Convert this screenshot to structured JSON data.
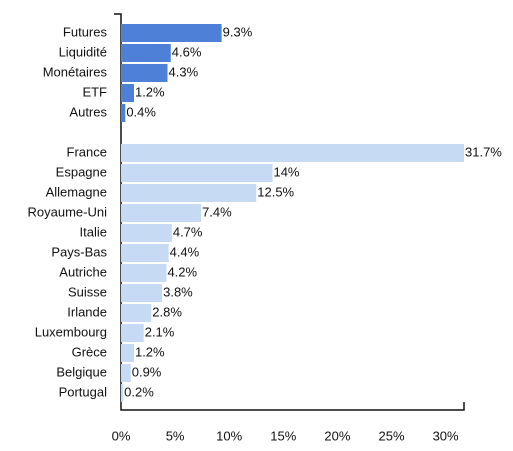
{
  "chart_data": [
    {
      "type": "barh",
      "categories": [
        "Futures",
        "Liquidité",
        "Monétaires",
        "ETF",
        "Autres"
      ],
      "values": [
        9.3,
        4.6,
        4.3,
        1.2,
        0.4
      ],
      "value_labels": [
        "9.3%",
        "4.6%",
        "4.3%",
        "1.2%",
        "0.4%"
      ],
      "color": "#4d80d6",
      "xlim": [
        0,
        31.7
      ]
    },
    {
      "type": "barh",
      "categories": [
        "France",
        "Espagne",
        "Allemagne",
        "Royaume-Uni",
        "Italie",
        "Pays-Bas",
        "Autriche",
        "Suisse",
        "Irlande",
        "Luxembourg",
        "Grèce",
        "Belgique",
        "Portugal"
      ],
      "values": [
        31.7,
        14,
        12.5,
        7.4,
        4.7,
        4.4,
        4.2,
        3.8,
        2.8,
        2.1,
        1.2,
        0.9,
        0.2
      ],
      "value_labels": [
        "31.7%",
        "14%",
        "12.5%",
        "7.4%",
        "4.7%",
        "4.4%",
        "4.2%",
        "3.8%",
        "2.8%",
        "2.1%",
        "1.2%",
        "0.9%",
        "0.2%"
      ],
      "color": "#c6daf4",
      "xlim": [
        0,
        31.7
      ],
      "xticks": [
        {
          "value": 0,
          "label": "0%"
        },
        {
          "value": 5,
          "label": "5%"
        },
        {
          "value": 10,
          "label": "10%"
        },
        {
          "value": 15,
          "label": "15%"
        },
        {
          "value": 20,
          "label": "20%"
        },
        {
          "value": 25,
          "label": "25%"
        },
        {
          "value": 30,
          "label": "30%"
        }
      ]
    }
  ]
}
